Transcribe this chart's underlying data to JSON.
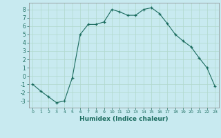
{
  "x": [
    0,
    1,
    2,
    3,
    4,
    5,
    6,
    7,
    8,
    9,
    10,
    11,
    12,
    13,
    14,
    15,
    16,
    17,
    18,
    19,
    20,
    21,
    22,
    23
  ],
  "y": [
    -1,
    -1.8,
    -2.5,
    -3.2,
    -3,
    -0.2,
    5.0,
    6.2,
    6.2,
    6.5,
    8.0,
    7.7,
    7.3,
    7.3,
    8.0,
    8.2,
    7.5,
    6.3,
    5.0,
    4.2,
    3.5,
    2.2,
    1.0,
    -1.2
  ],
  "xlabel": "Humidex (Indice chaleur)",
  "xlim": [
    -0.5,
    23.5
  ],
  "ylim": [
    -3.8,
    8.8
  ],
  "yticks": [
    -3,
    -2,
    -1,
    0,
    1,
    2,
    3,
    4,
    5,
    6,
    7,
    8
  ],
  "xticks": [
    0,
    1,
    2,
    3,
    4,
    5,
    6,
    7,
    8,
    9,
    10,
    11,
    12,
    13,
    14,
    15,
    16,
    17,
    18,
    19,
    20,
    21,
    22,
    23
  ],
  "line_color": "#1a6b5e",
  "marker": "+",
  "bg_color": "#c8eaf0",
  "grid_color_major": "#b0d8cc",
  "grid_color_minor": "#b0d8cc",
  "fig_bg": "#c8eaf0",
  "tick_color": "#1a6b5e",
  "label_color": "#1a6b5e"
}
